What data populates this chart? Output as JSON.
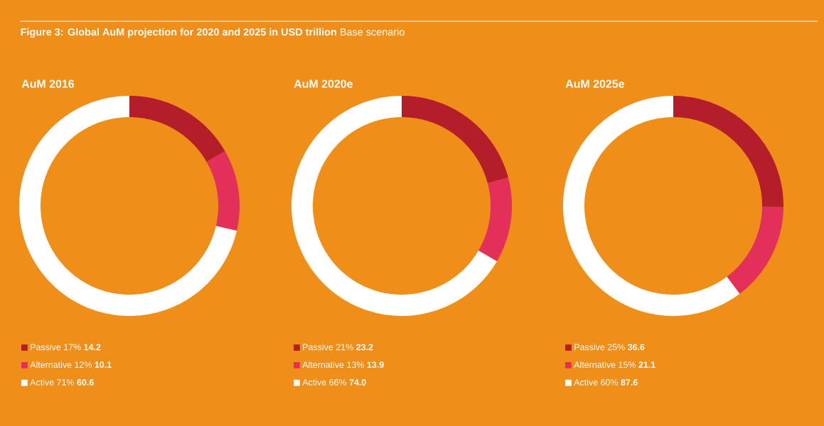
{
  "chart_data": [
    {
      "type": "donut",
      "title": "AuM 2016",
      "annotations": [
        "**Figure 3: Global AuM projection for 2020 and 2025 in USD trillion** Base scenario"
      ],
      "categories": [
        "Passive",
        "Alternative",
        "Active"
      ],
      "values": [
        14.2,
        10.1,
        60.6
      ],
      "colors": [
        "#b41e2b",
        "#e2305a",
        "#ffffff"
      ],
      "value_labels": [
        "17% **14.2**",
        "12% **10.1**",
        "71% **60.6**"
      ],
      "legend": "bottom"
    },
    {
      "type": "donut",
      "title": "AuM 2020e",
      "categories": [
        "Passive",
        "Alternative",
        "Active"
      ],
      "values": [
        23.2,
        13.9,
        74.0
      ],
      "colors": [
        "#b41e2b",
        "#e2305a",
        "#ffffff"
      ],
      "value_labels": [
        "21% **23.2**",
        "13% **13.9**",
        "66% **74.0**"
      ],
      "legend": "bottom"
    },
    {
      "type": "donut",
      "title": "AuM 2025e",
      "categories": [
        "Passive",
        "Alternative",
        "Active"
      ],
      "values": [
        36.6,
        21.1,
        87.6
      ],
      "colors": [
        "#b41e2b",
        "#e2305a",
        "#ffffff"
      ],
      "value_labels": [
        "25% **36.6**",
        "15% **21.1**",
        "60% **87.6**"
      ],
      "legend": "bottom"
    }
  ]
}
